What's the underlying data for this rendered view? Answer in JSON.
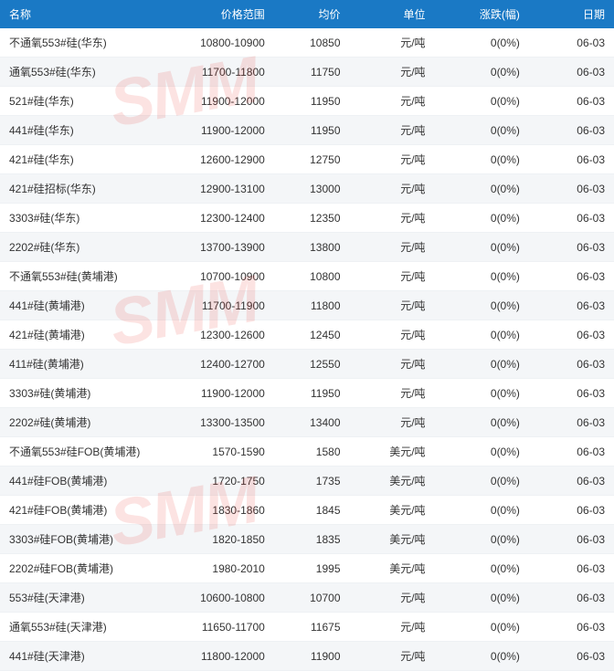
{
  "watermark_text": "SMM",
  "header_bg": "#1a79c5",
  "header_fg": "#ffffff",
  "row_alt_bg": "#f4f6f8",
  "row_bg": "#ffffff",
  "text_color": "#333333",
  "border_color": "#eef1f4",
  "watermark_color": "rgba(231,60,50,0.14)",
  "columns": [
    {
      "key": "name",
      "label": "名称"
    },
    {
      "key": "range",
      "label": "价格范围"
    },
    {
      "key": "avg",
      "label": "均价"
    },
    {
      "key": "unit",
      "label": "单位"
    },
    {
      "key": "change",
      "label": "涨跌(幅)"
    },
    {
      "key": "date",
      "label": "日期"
    }
  ],
  "rows": [
    {
      "name": "不通氧553#硅(华东)",
      "range": "10800-10900",
      "avg": "10850",
      "unit": "元/吨",
      "change": "0(0%)",
      "date": "06-03"
    },
    {
      "name": "通氧553#硅(华东)",
      "range": "11700-11800",
      "avg": "11750",
      "unit": "元/吨",
      "change": "0(0%)",
      "date": "06-03"
    },
    {
      "name": "521#硅(华东)",
      "range": "11900-12000",
      "avg": "11950",
      "unit": "元/吨",
      "change": "0(0%)",
      "date": "06-03"
    },
    {
      "name": "441#硅(华东)",
      "range": "11900-12000",
      "avg": "11950",
      "unit": "元/吨",
      "change": "0(0%)",
      "date": "06-03"
    },
    {
      "name": "421#硅(华东)",
      "range": "12600-12900",
      "avg": "12750",
      "unit": "元/吨",
      "change": "0(0%)",
      "date": "06-03"
    },
    {
      "name": "421#硅招标(华东)",
      "range": "12900-13100",
      "avg": "13000",
      "unit": "元/吨",
      "change": "0(0%)",
      "date": "06-03"
    },
    {
      "name": "3303#硅(华东)",
      "range": "12300-12400",
      "avg": "12350",
      "unit": "元/吨",
      "change": "0(0%)",
      "date": "06-03"
    },
    {
      "name": "2202#硅(华东)",
      "range": "13700-13900",
      "avg": "13800",
      "unit": "元/吨",
      "change": "0(0%)",
      "date": "06-03"
    },
    {
      "name": "不通氧553#硅(黄埔港)",
      "range": "10700-10900",
      "avg": "10800",
      "unit": "元/吨",
      "change": "0(0%)",
      "date": "06-03"
    },
    {
      "name": "441#硅(黄埔港)",
      "range": "11700-11900",
      "avg": "11800",
      "unit": "元/吨",
      "change": "0(0%)",
      "date": "06-03"
    },
    {
      "name": "421#硅(黄埔港)",
      "range": "12300-12600",
      "avg": "12450",
      "unit": "元/吨",
      "change": "0(0%)",
      "date": "06-03"
    },
    {
      "name": "411#硅(黄埔港)",
      "range": "12400-12700",
      "avg": "12550",
      "unit": "元/吨",
      "change": "0(0%)",
      "date": "06-03"
    },
    {
      "name": "3303#硅(黄埔港)",
      "range": "11900-12000",
      "avg": "11950",
      "unit": "元/吨",
      "change": "0(0%)",
      "date": "06-03"
    },
    {
      "name": "2202#硅(黄埔港)",
      "range": "13300-13500",
      "avg": "13400",
      "unit": "元/吨",
      "change": "0(0%)",
      "date": "06-03"
    },
    {
      "name": "不通氧553#硅FOB(黄埔港)",
      "range": "1570-1590",
      "avg": "1580",
      "unit": "美元/吨",
      "change": "0(0%)",
      "date": "06-03"
    },
    {
      "name": "441#硅FOB(黄埔港)",
      "range": "1720-1750",
      "avg": "1735",
      "unit": "美元/吨",
      "change": "0(0%)",
      "date": "06-03"
    },
    {
      "name": "421#硅FOB(黄埔港)",
      "range": "1830-1860",
      "avg": "1845",
      "unit": "美元/吨",
      "change": "0(0%)",
      "date": "06-03"
    },
    {
      "name": "3303#硅FOB(黄埔港)",
      "range": "1820-1850",
      "avg": "1835",
      "unit": "美元/吨",
      "change": "0(0%)",
      "date": "06-03"
    },
    {
      "name": "2202#硅FOB(黄埔港)",
      "range": "1980-2010",
      "avg": "1995",
      "unit": "美元/吨",
      "change": "0(0%)",
      "date": "06-03"
    },
    {
      "name": "553#硅(天津港)",
      "range": "10600-10800",
      "avg": "10700",
      "unit": "元/吨",
      "change": "0(0%)",
      "date": "06-03"
    },
    {
      "name": "通氧553#硅(天津港)",
      "range": "11650-11700",
      "avg": "11675",
      "unit": "元/吨",
      "change": "0(0%)",
      "date": "06-03"
    },
    {
      "name": "441#硅(天津港)",
      "range": "11800-12000",
      "avg": "11900",
      "unit": "元/吨",
      "change": "0(0%)",
      "date": "06-03"
    }
  ]
}
